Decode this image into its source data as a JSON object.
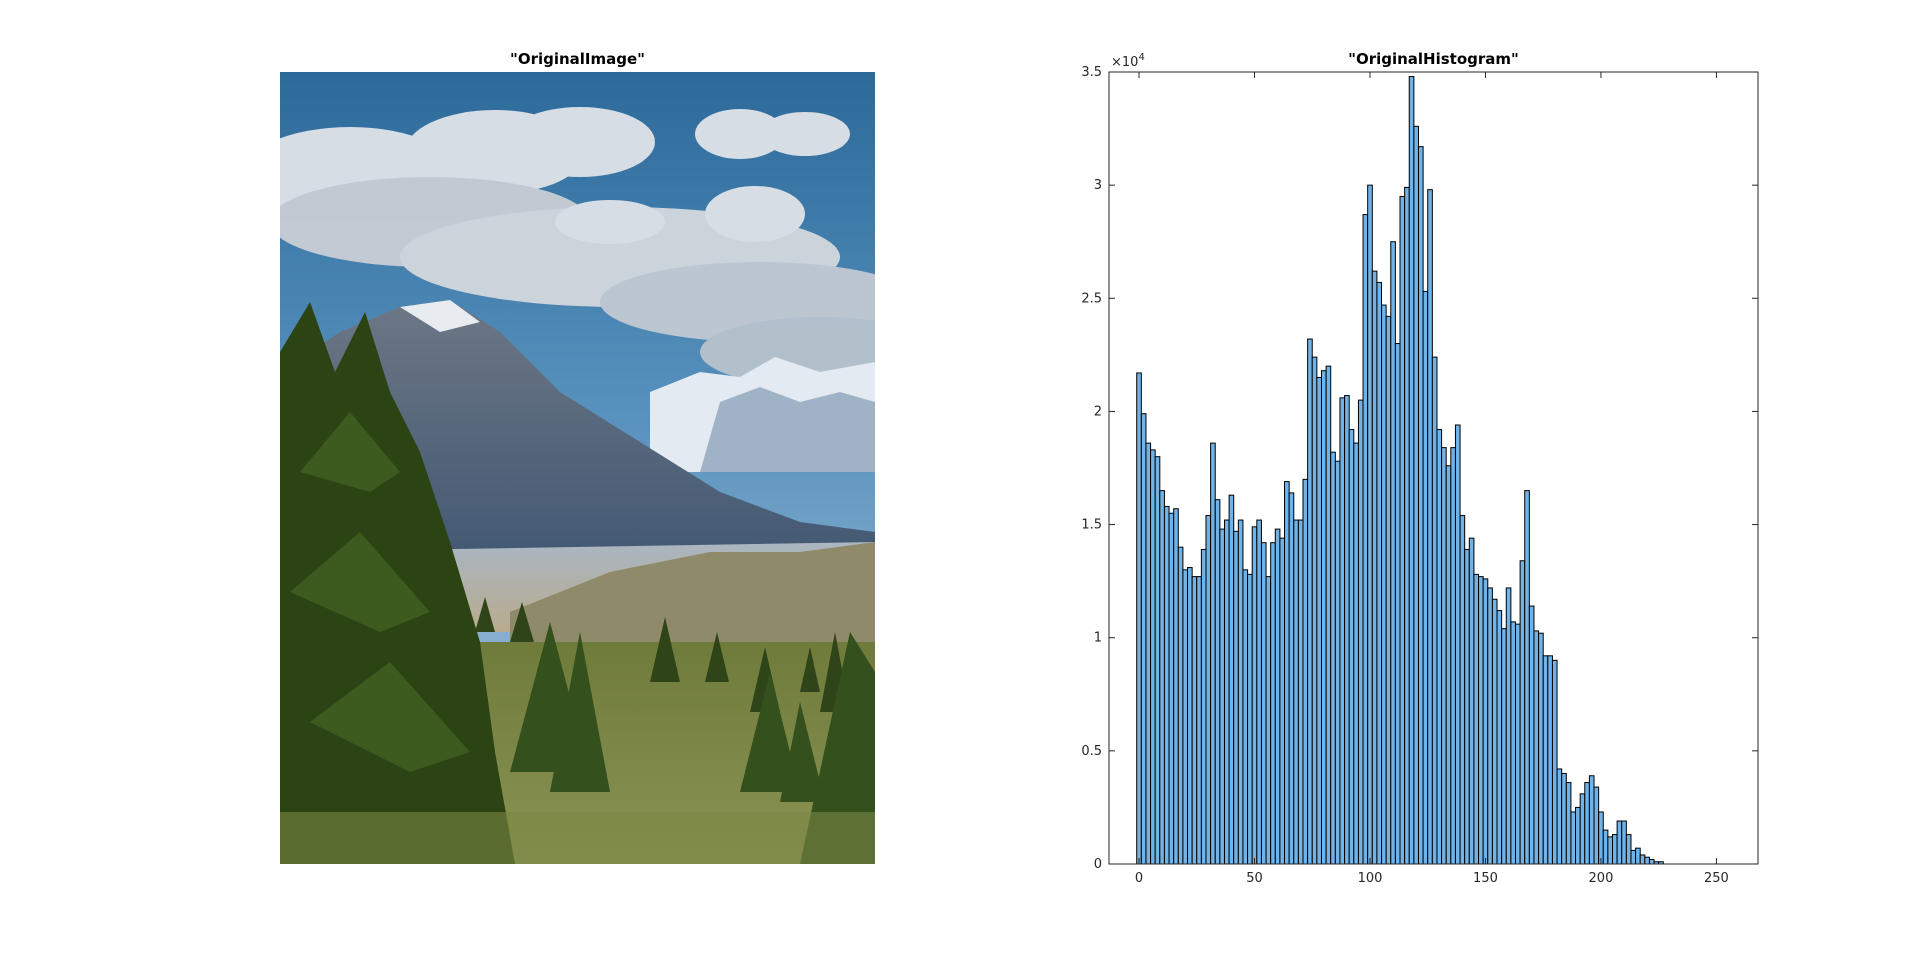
{
  "figure": {
    "image_title": "\"OriginalImage\"",
    "histogram_title": "\"OriginalHistogram\"",
    "exponent_label": "×10",
    "exponent_power": "4"
  },
  "colors": {
    "bar_fill": "#6fb3e8",
    "bar_edge": "#000000",
    "sky_top": "#2f6f9e",
    "mountain": "#5b6b80",
    "forest": "#3e5a22",
    "snow": "#eef2f6"
  },
  "chart_data": {
    "type": "bar",
    "title": "\"OriginalHistogram\"",
    "xlabel": "",
    "ylabel": "",
    "xlim": [
      -13,
      268
    ],
    "ylim": [
      0,
      35000
    ],
    "bin_width": 2,
    "x_ticks": [
      0,
      50,
      100,
      150,
      200,
      250
    ],
    "y_ticks": [
      0,
      5000,
      10000,
      15000,
      20000,
      25000,
      30000,
      35000
    ],
    "y_tick_labels": [
      "0",
      "0.5",
      "1",
      "1.5",
      "2",
      "2.5",
      "3",
      "3.5"
    ],
    "grid": false,
    "x": [
      0,
      2,
      4,
      6,
      8,
      10,
      12,
      14,
      16,
      18,
      20,
      22,
      24,
      26,
      28,
      30,
      32,
      34,
      36,
      38,
      40,
      42,
      44,
      46,
      48,
      50,
      52,
      54,
      56,
      58,
      60,
      62,
      64,
      66,
      68,
      70,
      72,
      74,
      76,
      78,
      80,
      82,
      84,
      86,
      88,
      90,
      92,
      94,
      96,
      98,
      100,
      102,
      104,
      106,
      108,
      110,
      112,
      114,
      116,
      118,
      120,
      122,
      124,
      126,
      128,
      130,
      132,
      134,
      136,
      138,
      140,
      142,
      144,
      146,
      148,
      150,
      152,
      154,
      156,
      158,
      160,
      162,
      164,
      166,
      168,
      170,
      172,
      174,
      176,
      178,
      180,
      182,
      184,
      186,
      188,
      190,
      192,
      194,
      196,
      198,
      200,
      202,
      204,
      206,
      208,
      210,
      212,
      214,
      216,
      218,
      220,
      222,
      224,
      226,
      228,
      230,
      232,
      234,
      236,
      238,
      240,
      242,
      244,
      246,
      248,
      250
    ],
    "values": [
      21700,
      19900,
      18600,
      18300,
      18000,
      16500,
      15800,
      15500,
      15700,
      14000,
      13000,
      13100,
      12700,
      12700,
      13900,
      15400,
      18600,
      16100,
      14800,
      15200,
      16300,
      14700,
      15200,
      13000,
      12800,
      14900,
      15200,
      14200,
      12700,
      14200,
      14800,
      14400,
      16900,
      16400,
      15200,
      15200,
      17000,
      23200,
      22400,
      21500,
      21800,
      22000,
      18200,
      17800,
      20600,
      20700,
      19200,
      18600,
      20500,
      28700,
      30000,
      26200,
      25700,
      24700,
      24200,
      27500,
      23000,
      29500,
      29900,
      34800,
      32600,
      31700,
      25300,
      29800,
      22400,
      19200,
      18400,
      17600,
      18400,
      19400,
      15400,
      13900,
      14400,
      12800,
      12700,
      12600,
      12200,
      11700,
      11200,
      10400,
      12200,
      10700,
      10600,
      13400,
      16500,
      11400,
      10300,
      10200,
      9200,
      9200,
      9000,
      4200,
      4000,
      3600,
      2300,
      2500,
      3100,
      3600,
      3900,
      3400,
      2300,
      1500,
      1200,
      1300,
      1900,
      1900,
      1300,
      600,
      700,
      400,
      300,
      200,
      100,
      100,
      0,
      0,
      0,
      0,
      0,
      0,
      0,
      0,
      0,
      0,
      0,
      0
    ]
  }
}
